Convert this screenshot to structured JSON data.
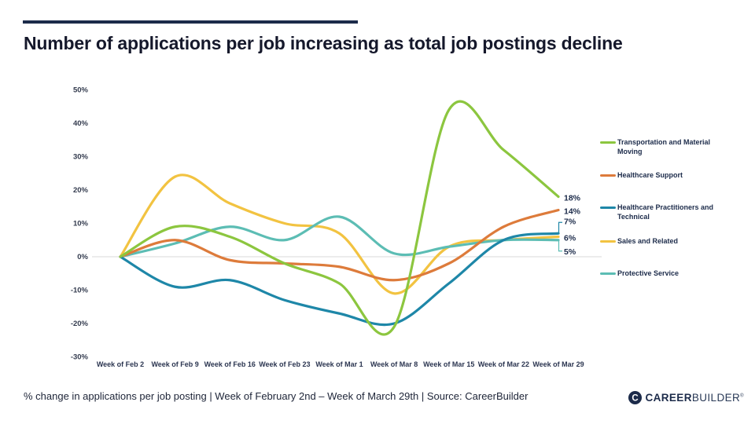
{
  "title": "Number of applications per job increasing as total job postings decline",
  "footer": {
    "caption": "% change in applications per job posting  |  Week of February 2nd – Week of March 29th  |  Source: CareerBuilder",
    "logo_career": "CAREER",
    "logo_builder": "BUILDER",
    "logo_reg": "®"
  },
  "colors": {
    "accent_navy": "#1c2b4a",
    "gridline": "#d8d8d8",
    "axis_text": "#333b4e"
  },
  "chart_data": {
    "type": "line",
    "title": "Number of applications per job increasing as total job postings decline",
    "categories": [
      "Week of Feb 2",
      "Week of Feb 9",
      "Week of Feb 16",
      "Week of Feb 23",
      "Week of Mar 1",
      "Week of Mar 8",
      "Week of Mar 15",
      "Week of Mar 22",
      "Week of Mar 29"
    ],
    "series": [
      {
        "name": "Transportation and Material Moving",
        "color": "#8cc63f",
        "values": [
          0,
          9,
          6,
          -2,
          -8,
          -21,
          44,
          32,
          18
        ],
        "end_label": "18%",
        "bracket": "none"
      },
      {
        "name": "Healthcare Support",
        "color": "#dd7b3b",
        "values": [
          0,
          5,
          -1,
          -2,
          -3,
          -7,
          -2,
          9,
          14
        ],
        "end_label": "14%",
        "bracket": "none"
      },
      {
        "name": "Healthcare Practitioners and Technical",
        "color": "#1e87a8",
        "values": [
          0,
          -9,
          -7,
          -13,
          -17,
          -20,
          -8,
          5,
          7
        ],
        "end_label": "7%",
        "bracket": "up"
      },
      {
        "name": "Sales and Related",
        "color": "#f2c341",
        "values": [
          0,
          24,
          16,
          10,
          7,
          -11,
          3,
          5,
          6
        ],
        "end_label": "6%",
        "bracket": "none"
      },
      {
        "name": "Protective Service",
        "color": "#5cbdb4",
        "values": [
          0,
          4,
          9,
          5,
          12,
          1,
          3,
          5,
          5
        ],
        "end_label": "5%",
        "bracket": "down"
      }
    ],
    "y_ticks": [
      "50%",
      "40%",
      "30%",
      "20%",
      "10%",
      "0%",
      "-10%",
      "-20%",
      "-30%"
    ],
    "ylim": [
      -30,
      50
    ],
    "xlabel": "",
    "ylabel": "% change in applications per job posting",
    "grid": "horizontal line at 0% only",
    "legend_position": "right",
    "line_style": "smoothed"
  }
}
